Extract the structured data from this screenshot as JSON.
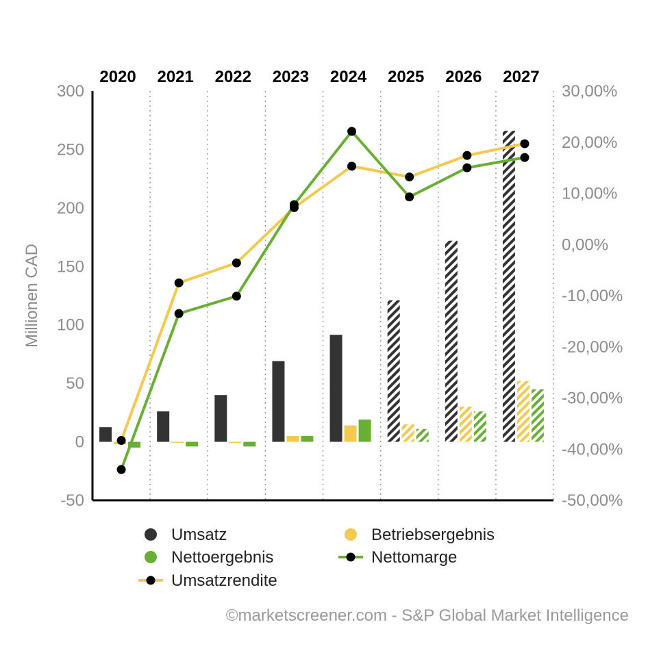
{
  "chart_data": {
    "type": "bar+line",
    "categories": [
      "2020",
      "2021",
      "2022",
      "2023",
      "2024",
      "2025",
      "2026",
      "2027"
    ],
    "estimate_categories": [
      "2025",
      "2026",
      "2027"
    ],
    "y_left": {
      "label": "Millionen CAD",
      "range": [
        -50,
        300
      ],
      "ticks": [
        300,
        250,
        200,
        150,
        100,
        50,
        0,
        -50
      ],
      "tick_labels": [
        "300",
        "250",
        "200",
        "150",
        "100",
        "50",
        "0",
        "-50"
      ]
    },
    "y_right": {
      "range": [
        -50,
        30
      ],
      "ticks": [
        30,
        20,
        10,
        0,
        -10,
        -20,
        -30,
        -40,
        -50
      ],
      "tick_labels": [
        "30,00%",
        "20,00%",
        "10,00%",
        "0,00%",
        "-10,00%",
        "-20,00%",
        "-30,00%",
        "-40,00%",
        "-50,00%"
      ]
    },
    "bar_series": [
      {
        "name": "Umsatz",
        "color": "#333333",
        "values": [
          12.5,
          26,
          40,
          69,
          91.5,
          121,
          172,
          266
        ]
      },
      {
        "name": "Betriebsergebnis",
        "color": "#f3c94f",
        "values": [
          -2,
          -1,
          -1,
          5,
          14,
          15,
          30,
          52
        ]
      },
      {
        "name": "Nettoergebnis",
        "color": "#6aaf35",
        "values": [
          -5,
          -4,
          -4,
          5,
          19,
          11,
          26,
          45
        ]
      }
    ],
    "line_series": [
      {
        "name": "Umsatzrendite",
        "color": "#f3c94f",
        "values": [
          -38.3,
          -7.5,
          -3.6,
          7.2,
          15.3,
          13.2,
          17.4,
          19.7
        ]
      },
      {
        "name": "Nettomarge",
        "color": "#6aaf35",
        "values": [
          -44.0,
          -13.5,
          -10.1,
          7.8,
          22.1,
          9.3,
          15.0,
          17.0
        ]
      }
    ],
    "legend": [
      {
        "label": "Umsatz",
        "kind": "dot",
        "color": "#333333"
      },
      {
        "label": "Betriebsergebnis",
        "kind": "dot",
        "color": "#f3c94f"
      },
      {
        "label": "Nettoergebnis",
        "kind": "dot",
        "color": "#6aaf35"
      },
      {
        "label": "Nettomarge",
        "kind": "line",
        "color": "#6aaf35"
      },
      {
        "label": "Umsatzrendite",
        "kind": "line",
        "color": "#f3c94f"
      }
    ],
    "credit": "©marketscreener.com - S&P Global Market Intelligence"
  }
}
